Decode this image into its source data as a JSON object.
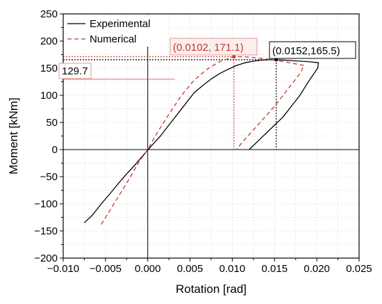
{
  "chart_data": {
    "type": "line",
    "xlabel": "Rotation [rad]",
    "ylabel": "Moment [kNm]",
    "xlim": [
      -0.01,
      0.025
    ],
    "ylim": [
      -200,
      250
    ],
    "x_ticks": [
      "−0.010",
      "−0.005",
      "0.000",
      "0.005",
      "0.010",
      "0.015",
      "0.020",
      "0.025"
    ],
    "x_tick_values": [
      -0.01,
      -0.005,
      0.0,
      0.005,
      0.01,
      0.015,
      0.02,
      0.025
    ],
    "y_ticks": [
      "−200",
      "−150",
      "−100",
      "−50",
      "0",
      "50",
      "100",
      "150",
      "200",
      "250"
    ],
    "y_tick_values": [
      -200,
      -150,
      -100,
      -50,
      0,
      50,
      100,
      150,
      200,
      250
    ],
    "grid": "minor dotted",
    "legend_position": "top-left",
    "series": [
      {
        "name": "Experimental",
        "style": "solid",
        "color": "#000000",
        "x": [
          -0.0075,
          -0.0065,
          -0.0055,
          -0.0045,
          -0.0035,
          -0.0025,
          -0.0015,
          -0.0005,
          0.0005,
          0.0015,
          0.0025,
          0.0035,
          0.0045,
          0.0055,
          0.0065,
          0.0075,
          0.0085,
          0.0095,
          0.0105,
          0.0115,
          0.0125,
          0.0135,
          0.0145,
          0.0152,
          0.016,
          0.017,
          0.018,
          0.019,
          0.0202,
          0.0201,
          0.019,
          0.018,
          0.017,
          0.016,
          0.015,
          0.014,
          0.013,
          0.012
        ],
        "y": [
          -135,
          -120,
          -100,
          -82,
          -63,
          -45,
          -28,
          -10,
          8,
          25,
          45,
          65,
          85,
          105,
          118,
          130,
          140,
          148,
          155,
          160,
          163,
          165,
          165.5,
          165.5,
          165,
          164,
          163,
          162,
          160,
          150,
          125,
          100,
          80,
          60,
          45,
          30,
          15,
          0
        ]
      },
      {
        "name": "Numerical",
        "style": "dashed",
        "color": "#c0392b",
        "x": [
          -0.0055,
          -0.004,
          -0.0025,
          -0.001,
          0.0,
          0.001,
          0.0025,
          0.004,
          0.0055,
          0.007,
          0.0085,
          0.0102,
          0.0115,
          0.013,
          0.0145,
          0.016,
          0.0175,
          0.0185,
          0.018,
          0.017,
          0.016,
          0.015,
          0.014,
          0.013,
          0.012,
          0.011,
          0.0105
        ],
        "y": [
          -138,
          -100,
          -62,
          -22,
          0,
          28,
          65,
          100,
          128,
          148,
          162,
          171.1,
          171,
          169,
          166,
          162,
          158,
          155,
          140,
          120,
          100,
          80,
          62,
          45,
          28,
          10,
          0
        ]
      }
    ],
    "annotations": [
      {
        "label": "(0.0102, 171.1)",
        "x": 0.0102,
        "y": 171.1,
        "color": "#c0392b",
        "box_fill": "#fbeeee",
        "box_stroke": "#e39a9a"
      },
      {
        "label": "(0.0152,165.5)",
        "x": 0.0152,
        "y": 165.5,
        "color": "#000000",
        "box_fill": "#ffffff",
        "box_stroke": "#000000"
      },
      {
        "label": "129.7",
        "y": 129.7,
        "color": "#000000",
        "box_fill": "#ffffff",
        "box_stroke": "#e39a9a"
      }
    ]
  }
}
